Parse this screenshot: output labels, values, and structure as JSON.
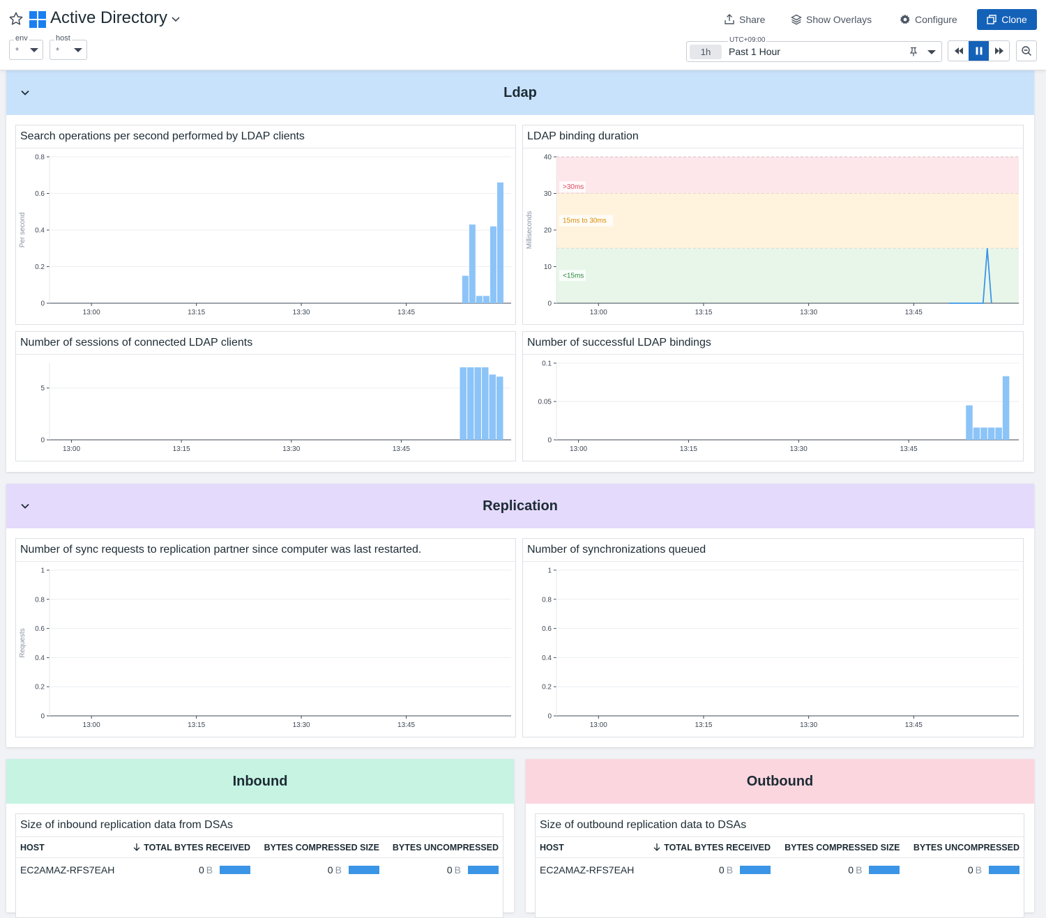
{
  "header": {
    "title": "Active Directory",
    "vars": [
      {
        "label": "env",
        "value": "*"
      },
      {
        "label": "host",
        "value": "*"
      }
    ],
    "share_label": "Share",
    "overlays_label": "Show Overlays",
    "configure_label": "Configure",
    "clone_label": "Clone",
    "timezone": "UTC+09:00",
    "time_pill": "1h",
    "time_label": "Past 1 Hour"
  },
  "colors": {
    "accent": "#1461b8",
    "bar": "#8cc4f8",
    "line": "#3b95e6",
    "ldap_header": "#c9e2fb",
    "replication_header": "#e4dafc",
    "inbound_header": "#c6f3e2",
    "outbound_header": "#fcd6df"
  },
  "groups": {
    "ldap": {
      "title": "Ldap"
    },
    "replication": {
      "title": "Replication"
    },
    "inbound": {
      "title": "Inbound"
    },
    "outbound": {
      "title": "Outbound"
    }
  },
  "widgets": {
    "search_ops": {
      "title": "Search operations per second performed by LDAP clients"
    },
    "bind_duration": {
      "title": "LDAP binding duration"
    },
    "sessions": {
      "title": "Number of sessions of connected LDAP clients"
    },
    "bindings": {
      "title": "Number of successful LDAP bindings"
    },
    "sync_requests": {
      "title": "Number of sync requests to replication partner since computer was last restarted."
    },
    "sync_queued": {
      "title": "Number of synchronizations queued"
    },
    "inbound_table": {
      "title": "Size of inbound replication data from DSAs"
    },
    "outbound_table": {
      "title": "Size of outbound replication data to DSAs"
    }
  },
  "tables": {
    "inbound": {
      "columns": [
        "HOST",
        "TOTAL BYTES RECEIVED",
        "BYTES COMPRESSED SIZE",
        "BYTES UNCOMPRESSED"
      ],
      "rows": [
        {
          "host": "EC2AMAZ-RFS7EAH",
          "v1": "0",
          "u1": "B",
          "v2": "0",
          "u2": "B",
          "v3": "0",
          "u3": "B"
        }
      ]
    },
    "outbound": {
      "columns": [
        "HOST",
        "TOTAL BYTES RECEIVED",
        "BYTES COMPRESSED SIZE",
        "BYTES UNCOMPRESSED"
      ],
      "rows": [
        {
          "host": "EC2AMAZ-RFS7EAH",
          "v1": "0",
          "u1": "B",
          "v2": "0",
          "u2": "B",
          "v3": "0",
          "u3": "B"
        }
      ]
    }
  },
  "chart_data": [
    {
      "id": "search_ops",
      "type": "bar",
      "title": "Search operations per second performed by LDAP clients",
      "ylabel": "Per second",
      "xlim": [
        12.9,
        14.0
      ],
      "x_ticks": [
        "13:00",
        "13:15",
        "13:30",
        "13:45"
      ],
      "ylim": [
        0,
        0.8
      ],
      "y_ticks": [
        0,
        0.2,
        0.4,
        0.6,
        0.8
      ],
      "y_tick_labels": [
        "0",
        "0.2",
        "0.4",
        "0.6",
        "0.8"
      ],
      "x": [
        53,
        54,
        55,
        56,
        57,
        58
      ],
      "values": [
        0.15,
        0.43,
        0.04,
        0.04,
        0.42,
        0.66
      ]
    },
    {
      "id": "bind_duration",
      "type": "line",
      "title": "LDAP binding duration",
      "ylabel": "Milliseconds",
      "xlim": [
        12.9,
        14.0
      ],
      "x_ticks": [
        "13:00",
        "13:15",
        "13:30",
        "13:45"
      ],
      "ylim": [
        0,
        40
      ],
      "y_ticks": [
        0,
        10,
        20,
        30,
        40
      ],
      "y_tick_labels": [
        "0",
        "10",
        "20",
        "30",
        "40"
      ],
      "bands": [
        {
          "from": 30,
          "to": 40,
          "label": ">30ms",
          "color": "#fde7ea",
          "text_color": "#d9485f"
        },
        {
          "from": 15,
          "to": 30,
          "label": "15ms to 30ms",
          "color": "#fff3de",
          "text_color": "#d98b00"
        },
        {
          "from": 0,
          "to": 15,
          "label": "<15ms",
          "color": "#e8f6ea",
          "text_color": "#2e8b3d"
        }
      ],
      "x": [
        50,
        54.9,
        55.5,
        56.1
      ],
      "values": [
        0,
        0,
        15,
        0
      ]
    },
    {
      "id": "sessions",
      "type": "bar",
      "title": "Number of sessions of connected LDAP clients",
      "ylabel": "",
      "xlim": [
        12.95,
        14.0
      ],
      "x_ticks": [
        "13:00",
        "13:15",
        "13:30",
        "13:45"
      ],
      "ylim": [
        0,
        7.4
      ],
      "y_ticks": [
        0,
        5
      ],
      "y_tick_labels": [
        "0",
        "5"
      ],
      "x": [
        53,
        54,
        55,
        56,
        57,
        58
      ],
      "values": [
        7,
        7,
        7,
        7,
        6.3,
        6.1
      ]
    },
    {
      "id": "bindings",
      "type": "bar",
      "title": "Number of successful LDAP bindings",
      "ylabel": "",
      "xlim": [
        12.95,
        14.0
      ],
      "x_ticks": [
        "13:00",
        "13:15",
        "13:30",
        "13:45"
      ],
      "ylim": [
        0,
        0.1
      ],
      "y_ticks": [
        0,
        0.05,
        0.1
      ],
      "y_tick_labels": [
        "0",
        "0.05",
        "0.1"
      ],
      "x": [
        52.8,
        53.8,
        54.8,
        55.8,
        56.8,
        57.8
      ],
      "values": [
        0.045,
        0.016,
        0.016,
        0.016,
        0.016,
        0.083
      ]
    },
    {
      "id": "sync_requests",
      "type": "line",
      "title": "Number of sync requests to replication partner since computer was last restarted.",
      "ylabel": "Requests",
      "xlim": [
        12.9,
        14.0
      ],
      "x_ticks": [
        "13:00",
        "13:15",
        "13:30",
        "13:45"
      ],
      "ylim": [
        0,
        1
      ],
      "y_ticks": [
        0,
        0.2,
        0.4,
        0.6,
        0.8,
        1
      ],
      "y_tick_labels": [
        "0",
        "0.2",
        "0.4",
        "0.6",
        "0.8",
        "1"
      ],
      "x": [],
      "values": []
    },
    {
      "id": "sync_queued",
      "type": "line",
      "title": "Number of synchronizations queued",
      "ylabel": "",
      "xlim": [
        12.9,
        14.0
      ],
      "x_ticks": [
        "13:00",
        "13:15",
        "13:30",
        "13:45"
      ],
      "ylim": [
        0,
        1
      ],
      "y_ticks": [
        0,
        0.2,
        0.4,
        0.6,
        0.8,
        1
      ],
      "y_tick_labels": [
        "0",
        "0.2",
        "0.4",
        "0.6",
        "0.8",
        "1"
      ],
      "x": [],
      "values": []
    }
  ]
}
